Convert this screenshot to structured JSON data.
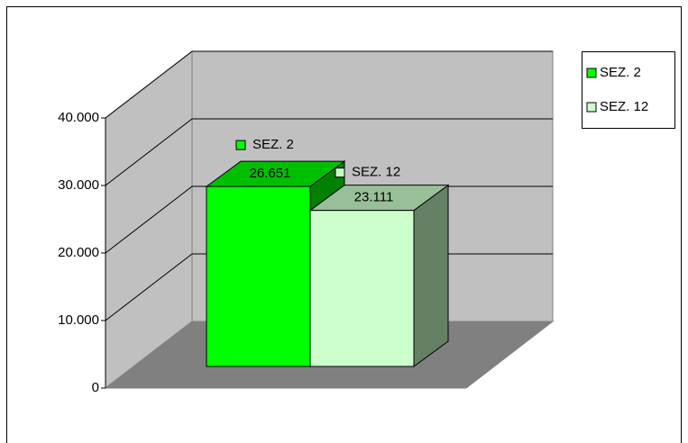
{
  "chart_data": {
    "type": "bar",
    "series": [
      {
        "name": "SEZ. 2",
        "color": "#00ff00",
        "values": [
          26651
        ],
        "value_labels": [
          "26.651"
        ]
      },
      {
        "name": "SEZ. 12",
        "color": "#ccffcc",
        "values": [
          23111
        ],
        "value_labels": [
          "23.111"
        ]
      }
    ],
    "ylim": [
      0,
      40000
    ],
    "yticks": [
      0,
      {
        "value": 10000,
        "label": "10.000"
      },
      {
        "value": 20000,
        "label": "20.000"
      },
      {
        "value": 30000,
        "label": "30.000"
      },
      {
        "value": 40000,
        "label": "40.000"
      }
    ],
    "grid": true,
    "legend": "right"
  }
}
